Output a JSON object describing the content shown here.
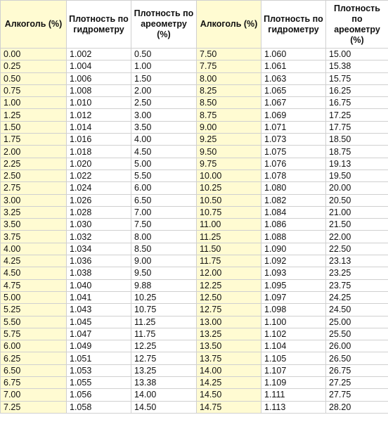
{
  "table": {
    "headers": [
      "Алкоголь (%)",
      "Плотность по гидрометру",
      "Плотность по ареометру (%)",
      "Алкоголь (%)",
      "Плотность по гидрометру",
      "Плотность по ареометру (%)"
    ],
    "highlight_color": "#fffbd2",
    "rows": [
      [
        "0.00",
        "1.002",
        "0.50",
        "7.50",
        "1.060",
        "15.00"
      ],
      [
        "0.25",
        "1.004",
        "1.00",
        "7.75",
        "1.061",
        "15.38"
      ],
      [
        "0.50",
        "1.006",
        "1.50",
        "8.00",
        "1.063",
        "15.75"
      ],
      [
        "0.75",
        "1.008",
        "2.00",
        "8.25",
        "1.065",
        "16.25"
      ],
      [
        "1.00",
        "1.010",
        "2.50",
        "8.50",
        "1.067",
        "16.75"
      ],
      [
        "1.25",
        "1.012",
        "3.00",
        "8.75",
        "1.069",
        "17.25"
      ],
      [
        "1.50",
        "1.014",
        "3.50",
        "9.00",
        "1.071",
        "17.75"
      ],
      [
        "1.75",
        "1.016",
        "4.00",
        "9.25",
        "1.073",
        "18.50"
      ],
      [
        "2.00",
        "1.018",
        "4.50",
        "9.50",
        "1.075",
        "18.75"
      ],
      [
        "2.25",
        "1.020",
        "5.00",
        "9.75",
        "1.076",
        "19.13"
      ],
      [
        "2.50",
        "1.022",
        "5.50",
        "10.00",
        "1.078",
        "19.50"
      ],
      [
        "2.75",
        "1.024",
        "6.00",
        "10.25",
        "1.080",
        "20.00"
      ],
      [
        "3.00",
        "1.026",
        "6.50",
        "10.50",
        "1.082",
        "20.50"
      ],
      [
        "3.25",
        "1.028",
        "7.00",
        "10.75",
        "1.084",
        "21.00"
      ],
      [
        "3.50",
        "1.030",
        "7.50",
        "11.00",
        "1.086",
        "21.50"
      ],
      [
        "3.75",
        "1.032",
        "8.00",
        "11.25",
        "1.088",
        "22.00"
      ],
      [
        "4.00",
        "1.034",
        "8.50",
        "11.50",
        "1.090",
        "22.50"
      ],
      [
        "4.25",
        "1.036",
        "9.00",
        "11.75",
        "1.092",
        "23.13"
      ],
      [
        "4.50",
        "1.038",
        "9.50",
        "12.00",
        "1.093",
        "23.25"
      ],
      [
        "4.75",
        "1.040",
        "9.88",
        "12.25",
        "1.095",
        "23.75"
      ],
      [
        "5.00",
        "1.041",
        "10.25",
        "12.50",
        "1.097",
        "24.25"
      ],
      [
        "5.25",
        "1.043",
        "10.75",
        "12.75",
        "1.098",
        "24.50"
      ],
      [
        "5.50",
        "1.045",
        "11.25",
        "13.00",
        "1.100",
        "25.00"
      ],
      [
        "5.75",
        "1.047",
        "11.75",
        "13.25",
        "1.102",
        "25.50"
      ],
      [
        "6.00",
        "1.049",
        "12.25",
        "13.50",
        "1.104",
        "26.00"
      ],
      [
        "6.25",
        "1.051",
        "12.75",
        "13.75",
        "1.105",
        "26.50"
      ],
      [
        "6.50",
        "1.053",
        "13.25",
        "14.00",
        "1.107",
        "26.75"
      ],
      [
        "6.75",
        "1.055",
        "13.38",
        "14.25",
        "1.109",
        "27.25"
      ],
      [
        "7.00",
        "1.056",
        "14.00",
        "14.50",
        "1.111",
        "27.75"
      ],
      [
        "7.25",
        "1.058",
        "14.50",
        "14.75",
        "1.113",
        "28.20"
      ]
    ]
  }
}
